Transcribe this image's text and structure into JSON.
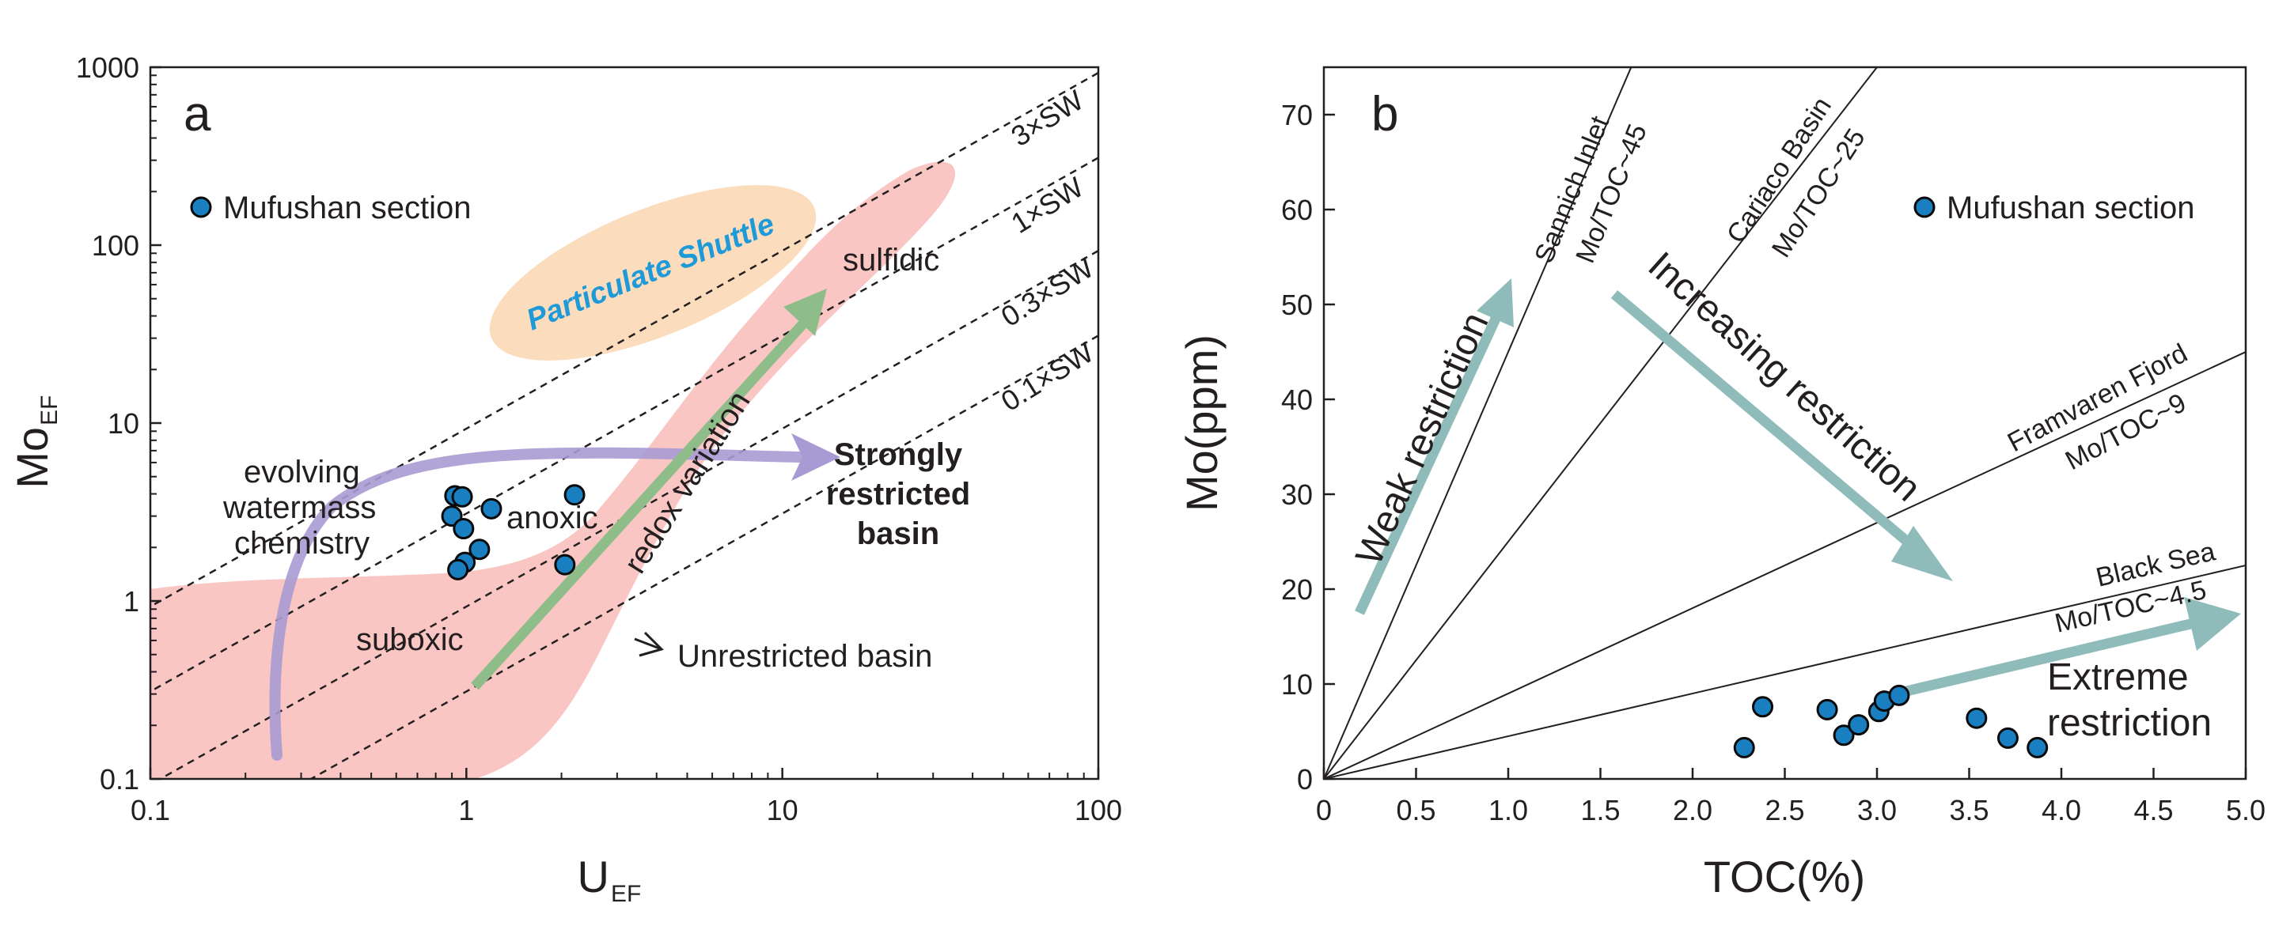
{
  "colors": {
    "axis": "#231f20",
    "point_fill": "#1a7fc1",
    "point_stroke": "#0a0a0a",
    "redox_zone": "#f9c6c4",
    "particulate_zone": "#fbdcbc",
    "particulate_text": "#1e9ad8",
    "purple_arrow": "#a89ad3",
    "green_arrow": "#8fbd8a",
    "teal_arrow": "#8fbcbb"
  },
  "chart_data": [
    {
      "type": "scatter",
      "panel_label": "a",
      "xlabel": "U",
      "xlabel_sub": "EF",
      "ylabel": "Mo",
      "ylabel_sub": "EF",
      "x_scale": "log",
      "y_scale": "log",
      "xlim": [
        0.1,
        100
      ],
      "ylim": [
        0.1,
        1000
      ],
      "x_ticks": [
        "0.1",
        "1",
        "10",
        "100"
      ],
      "y_ticks": [
        "0.1",
        "1",
        "10",
        "100",
        "1000"
      ],
      "legend": {
        "label": "Mufushan section",
        "position": "top-left"
      },
      "series": [
        {
          "name": "Mufushan section",
          "points": [
            {
              "x": 0.92,
              "y": 3.9
            },
            {
              "x": 0.97,
              "y": 3.85
            },
            {
              "x": 0.9,
              "y": 3.0
            },
            {
              "x": 0.98,
              "y": 2.55
            },
            {
              "x": 1.2,
              "y": 3.3
            },
            {
              "x": 2.2,
              "y": 3.95
            },
            {
              "x": 1.1,
              "y": 1.95
            },
            {
              "x": 0.99,
              "y": 1.65
            },
            {
              "x": 0.94,
              "y": 1.5
            },
            {
              "x": 2.05,
              "y": 1.6
            }
          ]
        }
      ],
      "reference_lines": [
        {
          "label": "3×SW",
          "ratio": 3
        },
        {
          "label": "1×SW",
          "ratio": 1
        },
        {
          "label": "0.3×SW",
          "ratio": 0.3
        },
        {
          "label": "0.1×SW",
          "ratio": 0.1
        }
      ],
      "annotations": {
        "particulate": "Particulate Shuttle",
        "sulfidic": "sulfidic",
        "anoxic": "anoxic",
        "suboxic": "suboxic",
        "redox": "redox variation",
        "evolving_1": "evolving",
        "evolving_2": "watermass",
        "evolving_3": "chemistry",
        "strong_1": "Strongly",
        "strong_2": "restricted",
        "strong_3": "basin",
        "unrestricted": "Unrestricted basin"
      }
    },
    {
      "type": "scatter",
      "panel_label": "b",
      "xlabel": "TOC(%)",
      "ylabel": "Mo(ppm)",
      "xlim": [
        0,
        5
      ],
      "ylim": [
        0,
        75
      ],
      "x_ticks": [
        "0",
        "0.5",
        "1.0",
        "1.5",
        "2.0",
        "2.5",
        "3.0",
        "3.5",
        "4.0",
        "4.5",
        "5.0"
      ],
      "y_ticks": [
        "0",
        "10",
        "20",
        "30",
        "40",
        "50",
        "60",
        "70"
      ],
      "legend": {
        "label": "Mufushan section",
        "position": "top-right"
      },
      "series": [
        {
          "name": "Mufushan section",
          "points": [
            {
              "x": 2.28,
              "y": 3.3
            },
            {
              "x": 2.38,
              "y": 7.6
            },
            {
              "x": 2.73,
              "y": 7.3
            },
            {
              "x": 2.82,
              "y": 4.6
            },
            {
              "x": 2.9,
              "y": 5.7
            },
            {
              "x": 3.01,
              "y": 7.1
            },
            {
              "x": 3.04,
              "y": 8.2
            },
            {
              "x": 3.12,
              "y": 8.8
            },
            {
              "x": 3.54,
              "y": 6.4
            },
            {
              "x": 3.71,
              "y": 4.3
            },
            {
              "x": 3.87,
              "y": 3.3
            }
          ]
        }
      ],
      "reference_lines": [
        {
          "name": "Sannich Inlet",
          "label": "Mo/TOC~45",
          "slope": 45
        },
        {
          "name": "Cariaco Basin",
          "label": "Mo/TOC~25",
          "slope": 25
        },
        {
          "name": "Framvaren Fjord",
          "label": "Mo/TOC~9",
          "slope": 9
        },
        {
          "name": "Black Sea",
          "label": "Mo/TOC~4.5",
          "slope": 4.5
        }
      ],
      "annotations": {
        "weak": "Weak restriction",
        "increasing": "Increasing restriction",
        "extreme_1": "Extreme",
        "extreme_2": "restriction"
      }
    }
  ]
}
